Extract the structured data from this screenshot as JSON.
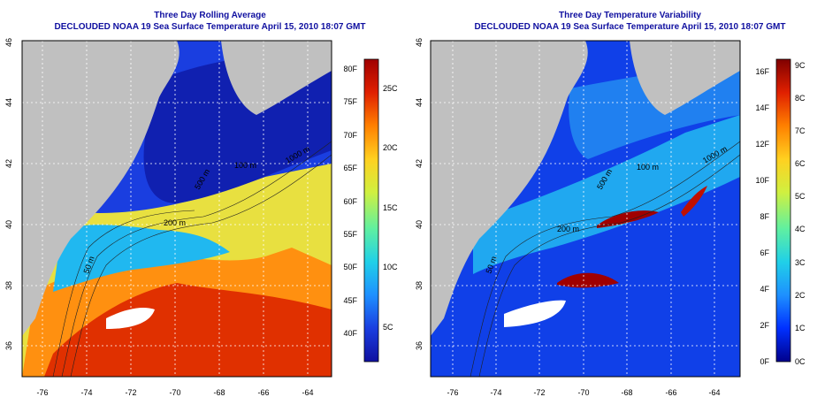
{
  "panels": [
    {
      "title": "Three Day Rolling Average",
      "subtitle": "DECLOUDED NOAA 19 Sea Surface Temperature April 15, 2010 18:07 GMT",
      "x_ticks": [
        "-76",
        "-74",
        "-72",
        "-70",
        "-68",
        "-66",
        "-64"
      ],
      "y_ticks": [
        "36",
        "38",
        "40",
        "42",
        "44",
        "46"
      ],
      "contour_labels": [
        "200 m",
        "500 m",
        "1000 m",
        "100 m",
        "50 m"
      ],
      "colorbar": {
        "left_labels": [
          "40F",
          "45F",
          "50F",
          "55F",
          "60F",
          "65F",
          "70F",
          "75F",
          "80F"
        ],
        "right_labels": [
          "5C",
          "10C",
          "15C",
          "20C",
          "25C"
        ],
        "range_f": [
          35,
          82
        ],
        "colors": [
          "#1010a0",
          "#1a3ee0",
          "#1e90ff",
          "#20d0e8",
          "#60f0a0",
          "#d0f040",
          "#ffd020",
          "#ff8000",
          "#e02000",
          "#a00000"
        ]
      }
    },
    {
      "title": "Three Day Temperature Variability",
      "subtitle": "DECLOUDED NOAA 19 Sea Surface Temperature April 15, 2010 18:07 GMT",
      "x_ticks": [
        "-76",
        "-74",
        "-72",
        "-70",
        "-68",
        "-66",
        "-64"
      ],
      "y_ticks": [
        "36",
        "38",
        "40",
        "42",
        "44",
        "46"
      ],
      "contour_labels": [
        "200 m",
        "500 m",
        "1000 m",
        "100 m",
        "50 m"
      ],
      "colorbar": {
        "left_labels": [
          "0F",
          "2F",
          "4F",
          "6F",
          "8F",
          "10F",
          "12F",
          "14F",
          "16F"
        ],
        "right_labels": [
          "0C",
          "1C",
          "2C",
          "3C",
          "4C",
          "5C",
          "6C",
          "7C",
          "8C",
          "9C"
        ],
        "range_f": [
          0,
          17
        ],
        "colors": [
          "#00008b",
          "#0030ff",
          "#1e90ff",
          "#20d0e8",
          "#60f0a0",
          "#d0f040",
          "#ffd020",
          "#ff8000",
          "#e02000",
          "#800000"
        ]
      }
    }
  ]
}
